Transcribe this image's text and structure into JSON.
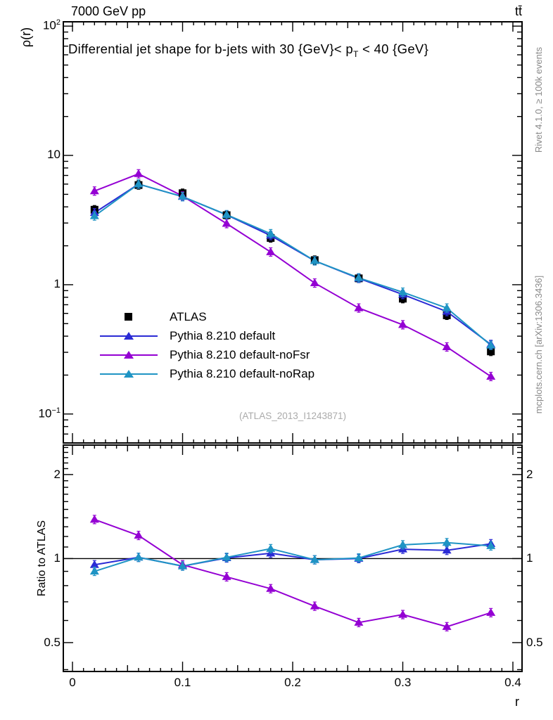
{
  "header": {
    "beam_energy": "7000 GeV pp",
    "process": "tt̄"
  },
  "title": {
    "pre": "Differential jet shape for b-jets with 30 {GeV}< p",
    "sub": "T",
    "post": " < 40 {GeV}"
  },
  "margin_right": {
    "generator_info": "Rivet 4.1.0, ≥ 100k events",
    "source": "mcplots.cern.ch [arXiv:1306.3436]"
  },
  "watermark": "(ATLAS_2013_I1243871)",
  "axes": {
    "x": {
      "label": "r",
      "tick_values": [
        0,
        0.1,
        0.2,
        0.3,
        0.4
      ],
      "tick_labels": [
        "0",
        "0.1",
        "0.2",
        "0.3",
        "0.4"
      ]
    },
    "main_y": {
      "label": "ρ(r)",
      "ticks": [
        {
          "base": "10",
          "exp": "2",
          "v": 100
        },
        {
          "base": "10",
          "exp": "",
          "v": 10
        },
        {
          "base": "1",
          "exp": "",
          "v": 1
        },
        {
          "base": "10",
          "exp": "−1",
          "v": 0.1
        }
      ]
    },
    "ratio_y": {
      "label": "Ratio to ATLAS",
      "ticks": [
        {
          "base": "2",
          "v": 2
        },
        {
          "base": "1",
          "v": 1
        },
        {
          "base": "0.5",
          "v": 0.5
        }
      ]
    }
  },
  "legend": {
    "items": [
      {
        "label": "ATLAS",
        "color": "#000000",
        "marker": "square",
        "line": false
      },
      {
        "label": "Pythia 8.210 default",
        "color": "#2b2bd5",
        "marker": "triangle",
        "line": true
      },
      {
        "label": "Pythia 8.210 default-noFsr",
        "color": "#9400d3",
        "marker": "triangle",
        "line": true
      },
      {
        "label": "Pythia 8.210 default-noRap",
        "color": "#1f94c4",
        "marker": "triangle",
        "line": true
      }
    ]
  },
  "chart_data": [
    {
      "type": "line",
      "panel": "main",
      "title": "Differential jet shape for b-jets with 30 {GeV}< pT < 40 {GeV}",
      "xlabel": "r",
      "ylabel": "ρ(r)",
      "yscale": "log",
      "xlim": [
        -0.00832,
        0.40832
      ],
      "ylim": [
        0.0597,
        108
      ],
      "error_bars": true,
      "x": [
        0.02,
        0.06,
        0.1,
        0.14,
        0.18,
        0.22,
        0.26,
        0.3,
        0.34,
        0.38
      ],
      "series": [
        {
          "name": "ATLAS",
          "color": "#000000",
          "marker": "square",
          "line": false,
          "values": [
            3.8,
            5.9,
            5.1,
            3.45,
            2.3,
            1.55,
            1.12,
            0.78,
            0.58,
            0.305
          ]
        },
        {
          "name": "Pythia 8.210 default",
          "color": "#2b2bd5",
          "marker": "triangle",
          "line": true,
          "values": [
            3.6,
            6.0,
            4.8,
            3.47,
            2.4,
            1.53,
            1.12,
            0.84,
            0.62,
            0.345
          ]
        },
        {
          "name": "Pythia 8.210 default-noFsr",
          "color": "#9400d3",
          "marker": "triangle",
          "line": true,
          "values": [
            5.3,
            7.2,
            4.85,
            2.97,
            1.79,
            1.03,
            0.66,
            0.49,
            0.33,
            0.195
          ]
        },
        {
          "name": "Pythia 8.210 default-noRap",
          "color": "#1f94c4",
          "marker": "triangle",
          "line": true,
          "values": [
            3.4,
            6.0,
            4.8,
            3.48,
            2.48,
            1.53,
            1.13,
            0.875,
            0.66,
            0.34
          ]
        }
      ]
    },
    {
      "type": "line",
      "panel": "ratio",
      "ylabel": "Ratio to ATLAS",
      "yscale": "log",
      "xlim": [
        -0.00832,
        0.40832
      ],
      "ylim": [
        0.394,
        2.55
      ],
      "ref_line": 1,
      "error_bars": true,
      "x": [
        0.02,
        0.06,
        0.1,
        0.14,
        0.18,
        0.22,
        0.26,
        0.3,
        0.34,
        0.38
      ],
      "series": [
        {
          "name": "Pythia 8.210 default",
          "color": "#2b2bd5",
          "marker": "triangle",
          "line": true,
          "values": [
            0.95,
            1.01,
            0.94,
            1.005,
            1.045,
            0.99,
            1.0,
            1.08,
            1.07,
            1.13
          ]
        },
        {
          "name": "Pythia 8.210 default-noFsr",
          "color": "#9400d3",
          "marker": "triangle",
          "line": true,
          "values": [
            1.38,
            1.21,
            0.95,
            0.86,
            0.78,
            0.675,
            0.59,
            0.63,
            0.57,
            0.64
          ]
        },
        {
          "name": "Pythia 8.210 default-noRap",
          "color": "#1f94c4",
          "marker": "triangle",
          "line": true,
          "values": [
            0.9,
            1.01,
            0.94,
            1.01,
            1.085,
            0.99,
            1.005,
            1.12,
            1.14,
            1.11
          ]
        }
      ]
    }
  ]
}
